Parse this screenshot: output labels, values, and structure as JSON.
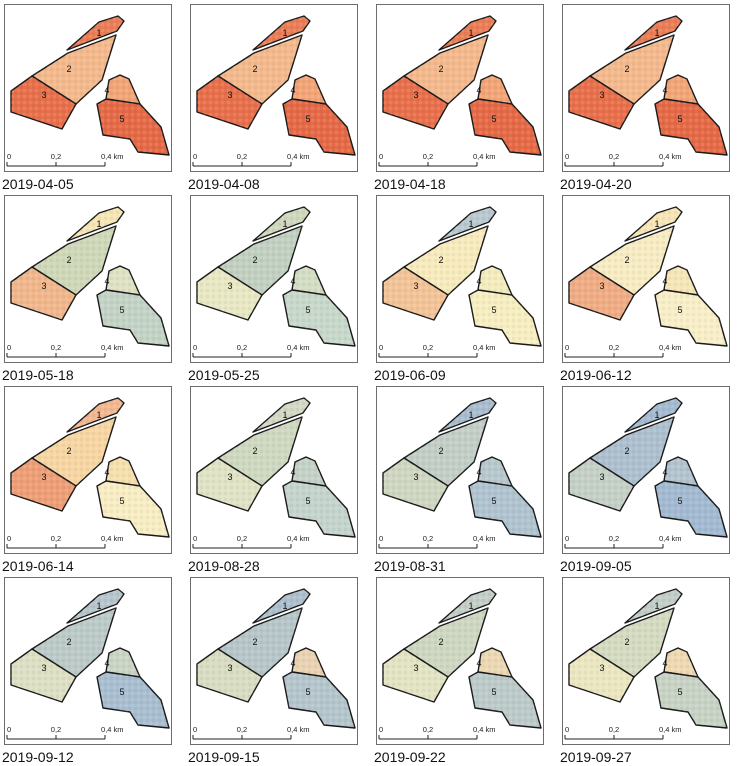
{
  "figure": {
    "panels": [
      {
        "date": "2019-04-05",
        "palette": "early"
      },
      {
        "date": "2019-04-08",
        "palette": "early"
      },
      {
        "date": "2019-04-18",
        "palette": "early"
      },
      {
        "date": "2019-04-20",
        "palette": "early"
      },
      {
        "date": "2019-05-18",
        "palette": "may18"
      },
      {
        "date": "2019-05-25",
        "palette": "may25"
      },
      {
        "date": "2019-06-09",
        "palette": "jun9"
      },
      {
        "date": "2019-06-12",
        "palette": "jun12"
      },
      {
        "date": "2019-06-14",
        "palette": "jun14"
      },
      {
        "date": "2019-08-28",
        "palette": "aug28"
      },
      {
        "date": "2019-08-31",
        "palette": "aug31"
      },
      {
        "date": "2019-09-05",
        "palette": "sep5"
      },
      {
        "date": "2019-09-12",
        "palette": "sep12"
      },
      {
        "date": "2019-09-15",
        "palette": "sep15"
      },
      {
        "date": "2019-09-22",
        "palette": "sep22"
      },
      {
        "date": "2019-09-27",
        "palette": "sep27"
      }
    ],
    "field_labels": [
      "1",
      "2",
      "3",
      "4",
      "5"
    ],
    "scalebar": {
      "ticks": [
        "0",
        "0,2",
        "0,4 km"
      ]
    },
    "colors": {
      "red": "#e35f3c",
      "orange": "#f0966a",
      "cream": "#fbf0b8",
      "green": "#d4e2b8",
      "blue": "#89aacb",
      "outline": "#1a1a1a"
    },
    "palettes": {
      "early": {
        "1": "#ea7e57",
        "2": "#f4b98d",
        "3": "#e8704c",
        "4": "#f2a678",
        "5": "#e56a47"
      },
      "may18": {
        "1": "#f7e6b5",
        "2": "#cfd8b8",
        "3": "#f1b78d",
        "4": "#dfe2c3",
        "5": "#c3d3c6"
      },
      "may25": {
        "1": "#cfd8bd",
        "2": "#c2d0c1",
        "3": "#e9e8c4",
        "4": "#d3dec4",
        "5": "#c8d8ca"
      },
      "jun9": {
        "1": "#b9c9cf",
        "2": "#f7ebbd",
        "3": "#f3c497",
        "4": "#f5ecbd",
        "5": "#f7eec2"
      },
      "jun12": {
        "1": "#f6e5b6",
        "2": "#f7ecc3",
        "3": "#f0ad85",
        "4": "#f6e6b8",
        "5": "#f8efc8"
      },
      "jun14": {
        "1": "#f3b892",
        "2": "#f7d6a4",
        "3": "#ee9f78",
        "4": "#f6e0ad",
        "5": "#f8edc4"
      },
      "aug28": {
        "1": "#d2d9c4",
        "2": "#cfd8c0",
        "3": "#e1e3c6",
        "4": "#c5d2c8",
        "5": "#c5d4cc"
      },
      "aug31": {
        "1": "#a9bdd0",
        "2": "#c3cfc6",
        "3": "#cfd7c3",
        "4": "#b8c8cc",
        "5": "#b0c4d0"
      },
      "sep5": {
        "1": "#a5bbd1",
        "2": "#aebfcf",
        "3": "#c5d0c7",
        "4": "#b3c4ce",
        "5": "#a3bad2"
      },
      "sep12": {
        "1": "#b6c6cc",
        "2": "#bccac8",
        "3": "#dde0c4",
        "4": "#cbd5c6",
        "5": "#a9bed0"
      },
      "sep15": {
        "1": "#aebfcd",
        "2": "#b7c6c9",
        "3": "#d9ddc2",
        "4": "#e9d3b2",
        "5": "#b4c6cc"
      },
      "sep22": {
        "1": "#c3cfc6",
        "2": "#ced7c1",
        "3": "#e3e4c3",
        "4": "#edd8b4",
        "5": "#bccbc9"
      },
      "sep27": {
        "1": "#c2cec7",
        "2": "#d4dbc1",
        "3": "#ebe7c1",
        "4": "#efd9b2",
        "5": "#c8d3c6"
      }
    }
  }
}
